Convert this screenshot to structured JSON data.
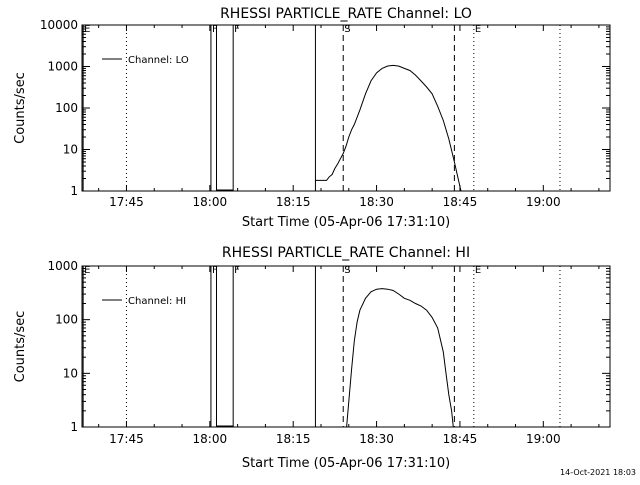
{
  "footer_timestamp": "14-Oct-2021 18:03",
  "chart_data": [
    {
      "type": "line",
      "title": "RHESSI PARTICLE_RATE Channel: LO",
      "xlabel": "Start Time (05-Apr-06 17:31:10)",
      "ylabel": "Counts/sec",
      "x_unit": "minutes after 17:30",
      "xlim": [
        7,
        102
      ],
      "ylim": [
        1,
        10000
      ],
      "y_scale": "log",
      "x_ticks": [
        {
          "v": 15,
          "label": "17:45"
        },
        {
          "v": 30,
          "label": "18:00"
        },
        {
          "v": 45,
          "label": "18:15"
        },
        {
          "v": 60,
          "label": "18:30"
        },
        {
          "v": 75,
          "label": "18:45"
        },
        {
          "v": 90,
          "label": "19:00"
        }
      ],
      "y_ticks": [
        {
          "v": 1,
          "label": "1"
        },
        {
          "v": 10,
          "label": "10"
        },
        {
          "v": 100,
          "label": "100"
        },
        {
          "v": 1000,
          "label": "1000"
        },
        {
          "v": 10000,
          "label": "10000"
        }
      ],
      "legend": {
        "label": "Channel: LO",
        "position": "top-left"
      },
      "markers": [
        {
          "x": 7.2,
          "style": "solid",
          "label": "E"
        },
        {
          "x": 15,
          "style": "dotted",
          "label": ""
        },
        {
          "x": 30.2,
          "style": "solid",
          "label": "F"
        },
        {
          "x": 31.2,
          "style": "solid",
          "label": ""
        },
        {
          "x": 34.2,
          "style": "solid",
          "label": "F"
        },
        {
          "x": 49,
          "style": "solid",
          "label": ""
        },
        {
          "x": 54,
          "style": "dashed",
          "label": "S"
        },
        {
          "x": 74,
          "style": "dashed",
          "label": ""
        },
        {
          "x": 77.5,
          "style": "dotted",
          "label": "E"
        },
        {
          "x": 93,
          "style": "dotted",
          "label": ""
        }
      ],
      "gaps": [
        [
          31.2,
          34.2
        ]
      ],
      "series": [
        {
          "x": [
            49,
            50,
            51,
            51.5,
            52,
            52.5,
            53,
            53.5,
            54,
            54.5,
            55,
            55.5,
            56,
            57,
            58,
            59,
            60,
            61,
            62,
            63,
            64,
            65,
            66,
            67,
            68,
            69,
            70,
            71,
            72,
            73,
            74,
            74.5,
            75,
            75.2
          ],
          "y": [
            1.8,
            1.8,
            1.8,
            2.2,
            2.5,
            3.5,
            4.5,
            6,
            8,
            12,
            20,
            30,
            40,
            90,
            220,
            450,
            700,
            900,
            1030,
            1060,
            1020,
            900,
            800,
            620,
            450,
            320,
            220,
            110,
            50,
            18,
            5,
            2.5,
            1.3,
            1
          ]
        }
      ]
    },
    {
      "type": "line",
      "title": "RHESSI PARTICLE_RATE Channel: HI",
      "xlabel": "Start Time (05-Apr-06 17:31:10)",
      "ylabel": "Counts/sec",
      "x_unit": "minutes after 17:30",
      "xlim": [
        7,
        102
      ],
      "ylim": [
        1,
        1000
      ],
      "y_scale": "log",
      "x_ticks": [
        {
          "v": 15,
          "label": "17:45"
        },
        {
          "v": 30,
          "label": "18:00"
        },
        {
          "v": 45,
          "label": "18:15"
        },
        {
          "v": 60,
          "label": "18:30"
        },
        {
          "v": 75,
          "label": "18:45"
        },
        {
          "v": 90,
          "label": "19:00"
        }
      ],
      "y_ticks": [
        {
          "v": 1,
          "label": "1"
        },
        {
          "v": 10,
          "label": "10"
        },
        {
          "v": 100,
          "label": "100"
        },
        {
          "v": 1000,
          "label": "1000"
        }
      ],
      "legend": {
        "label": "Channel: HI",
        "position": "top-left"
      },
      "markers": [
        {
          "x": 7.2,
          "style": "solid",
          "label": "E"
        },
        {
          "x": 15,
          "style": "dotted",
          "label": ""
        },
        {
          "x": 30.2,
          "style": "solid",
          "label": "F"
        },
        {
          "x": 31.2,
          "style": "solid",
          "label": ""
        },
        {
          "x": 34.2,
          "style": "solid",
          "label": "F"
        },
        {
          "x": 49,
          "style": "solid",
          "label": ""
        },
        {
          "x": 54,
          "style": "dashed",
          "label": "S"
        },
        {
          "x": 74,
          "style": "dashed",
          "label": ""
        },
        {
          "x": 77.5,
          "style": "dotted",
          "label": "E"
        },
        {
          "x": 93,
          "style": "dotted",
          "label": ""
        }
      ],
      "gaps": [
        [
          31.2,
          34.2
        ]
      ],
      "series": [
        {
          "x": [
            54.6,
            55,
            55.5,
            56,
            56.5,
            57,
            58,
            59,
            60,
            61,
            62,
            63,
            64,
            65,
            66,
            67,
            68,
            69,
            70,
            71,
            72,
            72.5,
            73,
            73.5,
            73.8
          ],
          "y": [
            1,
            3,
            12,
            40,
            90,
            150,
            250,
            330,
            370,
            380,
            370,
            350,
            300,
            250,
            230,
            200,
            180,
            150,
            110,
            70,
            25,
            10,
            4,
            2,
            1
          ]
        }
      ]
    }
  ]
}
